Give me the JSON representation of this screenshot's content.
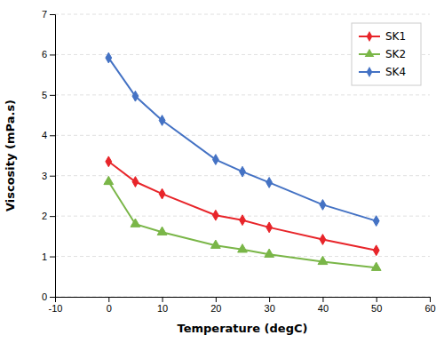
{
  "chart_data": {
    "type": "line",
    "xlabel": "Temperature (degC)",
    "ylabel": "Viscosity (mPa.s)",
    "x": [
      0,
      5,
      10,
      20,
      25,
      30,
      40,
      50
    ],
    "series": [
      {
        "name": "SK1",
        "color": "#e8252a",
        "marker": "diamond",
        "values": [
          3.35,
          2.85,
          2.55,
          2.02,
          1.9,
          1.72,
          1.42,
          1.15
        ]
      },
      {
        "name": "SK2",
        "color": "#7ab648",
        "marker": "triangle",
        "values": [
          2.85,
          1.8,
          1.6,
          1.27,
          1.17,
          1.05,
          0.87,
          0.72
        ]
      },
      {
        "name": "SK4",
        "color": "#4472c4",
        "marker": "diamond",
        "values": [
          5.92,
          4.97,
          4.37,
          3.4,
          3.1,
          2.83,
          2.28,
          1.88
        ]
      }
    ],
    "xlim": [
      -10,
      60
    ],
    "ylim": [
      0,
      7
    ],
    "xticks": [
      -10,
      0,
      10,
      20,
      30,
      40,
      50,
      60
    ],
    "yticks": [
      0,
      1,
      2,
      3,
      4,
      5,
      6,
      7
    ],
    "grid": "y",
    "legend": "upper right"
  }
}
